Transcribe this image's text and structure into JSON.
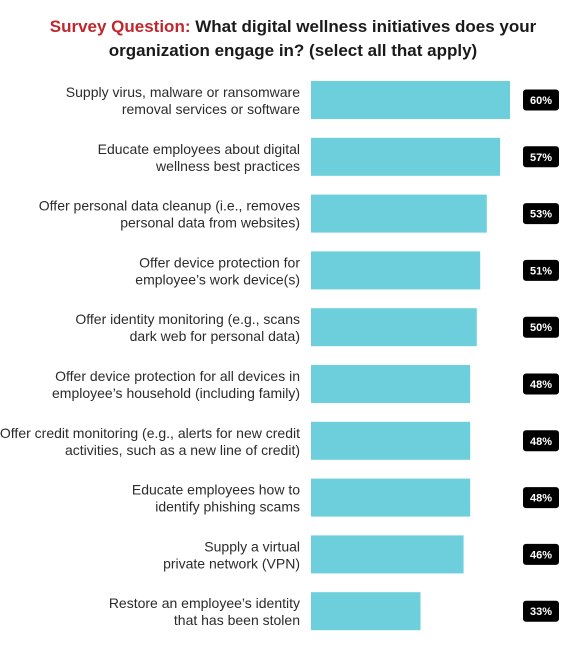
{
  "title": {
    "prefix": "Survey Question:",
    "line1": "What digital wellness initiatives does your",
    "line2": "organization engage in? (select all that apply)"
  },
  "colors": {
    "bar": "#6dcfdb",
    "badge": "#000000",
    "title_prefix": "#c0272d"
  },
  "chart_data": {
    "type": "bar",
    "orientation": "horizontal",
    "categories": [
      [
        "Supply virus, malware or ransomware",
        "removal services or software"
      ],
      [
        "Educate employees about digital",
        "wellness best practices"
      ],
      [
        "Offer personal data cleanup (i.e., removes",
        "personal data from websites)"
      ],
      [
        "Offer device protection for",
        "employee’s work device(s)"
      ],
      [
        "Offer identity monitoring (e.g., scans",
        "dark web for personal data)"
      ],
      [
        "Offer device protection for all devices in",
        "employee’s household (including family)"
      ],
      [
        "Offer credit monitoring (e.g., alerts for new credit",
        "activities, such as a new line of credit)"
      ],
      [
        "Educate employees how to",
        "identify phishing scams"
      ],
      [
        "Supply a virtual",
        "private network (VPN)"
      ],
      [
        "Restore an employee’s identity",
        "that has been stolen"
      ]
    ],
    "values": [
      60,
      57,
      53,
      51,
      50,
      48,
      48,
      48,
      46,
      33
    ],
    "value_labels": [
      "60%",
      "57%",
      "53%",
      "51%",
      "50%",
      "48%",
      "48%",
      "48%",
      "46%",
      "33%"
    ],
    "grid": false
  }
}
